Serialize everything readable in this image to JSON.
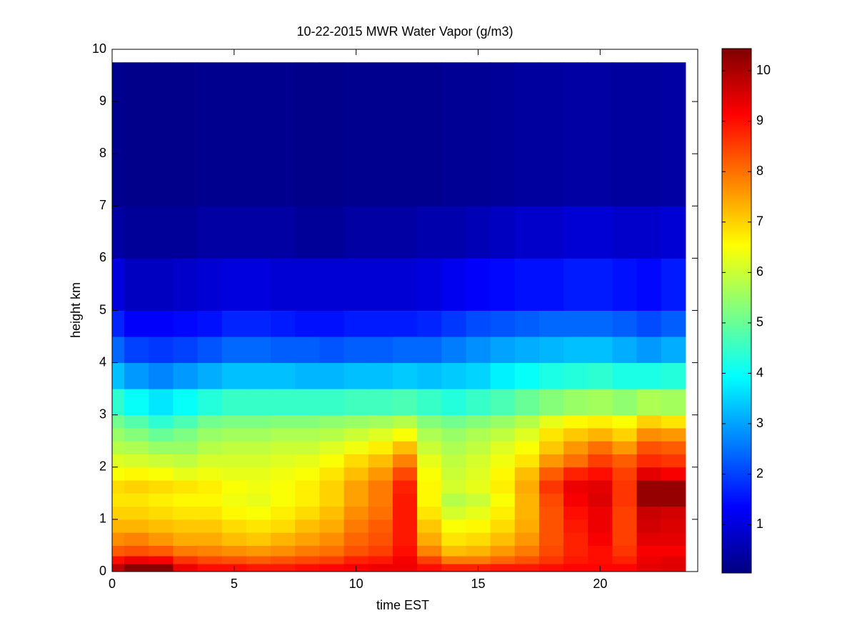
{
  "chart_data": {
    "type": "heatmap",
    "title": "10-22-2015 MWR Water Vapor (g/m3)",
    "xlabel": "time EST",
    "ylabel": "height km",
    "colormap": "jet",
    "xlim": [
      0,
      24
    ],
    "ylim": [
      0,
      10
    ],
    "xticks": [
      0,
      5,
      10,
      15,
      20
    ],
    "yticks": [
      0,
      1,
      2,
      3,
      4,
      5,
      6,
      7,
      8,
      9,
      10
    ],
    "clim": [
      0.04,
      10.44
    ],
    "cticks": [
      1,
      2,
      3,
      4,
      5,
      6,
      7,
      8,
      9,
      10
    ],
    "x_edges": [
      0,
      0.5,
      1.5,
      2.5,
      3.5,
      4.5,
      5.5,
      6.5,
      7.5,
      8.5,
      9.5,
      10.5,
      11.5,
      12.5,
      13.5,
      14.5,
      15.5,
      16.5,
      17.5,
      18.5,
      19.5,
      20.5,
      21.5,
      22.5,
      23.5
    ],
    "y_edges": [
      0,
      0.15,
      0.3,
      0.5,
      0.75,
      1.0,
      1.25,
      1.5,
      1.75,
      2.0,
      2.25,
      2.5,
      2.75,
      3.0,
      3.5,
      4.0,
      4.5,
      5.0,
      6.0,
      7.0,
      9.75
    ],
    "values": [
      [
        9.8,
        10.3,
        10.3,
        9.3,
        9.0,
        9.0,
        8.9,
        8.9,
        9.0,
        9.1,
        9.2,
        9.3,
        9.3,
        9.0,
        8.8,
        8.8,
        8.9,
        8.9,
        9.0,
        9.1,
        9.1,
        9.1,
        9.4,
        9.5
      ],
      [
        9.0,
        9.3,
        9.2,
        8.6,
        8.4,
        8.3,
        8.2,
        8.3,
        8.4,
        8.5,
        8.8,
        8.9,
        9.2,
        8.5,
        7.9,
        7.9,
        8.1,
        8.3,
        8.6,
        8.9,
        9.0,
        8.8,
        9.3,
        9.4
      ],
      [
        8.2,
        8.3,
        8.2,
        7.9,
        7.8,
        7.7,
        7.6,
        7.7,
        7.9,
        8.0,
        8.3,
        8.5,
        9.0,
        7.8,
        7.2,
        7.3,
        7.6,
        7.9,
        8.4,
        8.8,
        9.0,
        8.6,
        9.2,
        9.2
      ],
      [
        7.7,
        7.8,
        7.6,
        7.4,
        7.4,
        7.2,
        7.1,
        7.3,
        7.5,
        7.7,
        8.1,
        8.3,
        8.9,
        7.4,
        6.8,
        6.9,
        7.2,
        7.6,
        8.3,
        8.8,
        9.2,
        8.5,
        9.4,
        9.4
      ],
      [
        7.3,
        7.3,
        7.2,
        7.1,
        7.1,
        6.9,
        6.8,
        6.9,
        7.2,
        7.4,
        7.9,
        8.2,
        8.9,
        7.1,
        6.5,
        6.6,
        6.9,
        7.4,
        8.3,
        8.9,
        9.3,
        8.5,
        9.6,
        9.5
      ],
      [
        7.0,
        7.0,
        6.9,
        6.8,
        6.8,
        6.6,
        6.5,
        6.7,
        6.9,
        7.2,
        7.7,
        8.0,
        8.9,
        6.8,
        6.1,
        6.3,
        6.7,
        7.3,
        8.3,
        9.0,
        9.3,
        8.5,
        9.7,
        9.6
      ],
      [
        6.8,
        6.8,
        6.7,
        6.6,
        6.6,
        6.4,
        6.3,
        6.5,
        6.7,
        7.0,
        7.5,
        7.9,
        8.9,
        6.6,
        5.8,
        6.0,
        6.5,
        7.3,
        8.4,
        9.2,
        9.5,
        8.6,
        10.2,
        10.2
      ],
      [
        6.9,
        7.0,
        6.9,
        6.8,
        6.7,
        6.5,
        6.4,
        6.5,
        6.7,
        7.0,
        7.5,
        7.9,
        8.8,
        6.6,
        6.1,
        6.3,
        6.7,
        7.4,
        8.6,
        9.3,
        9.4,
        8.6,
        10.2,
        10.2
      ],
      [
        6.5,
        6.6,
        6.5,
        6.3,
        6.4,
        6.3,
        6.3,
        6.4,
        6.5,
        6.8,
        7.2,
        7.6,
        8.4,
        6.5,
        6.0,
        6.2,
        6.6,
        7.2,
        8.2,
        8.8,
        9.0,
        8.5,
        9.4,
        9.2
      ],
      [
        6.2,
        6.1,
        6.0,
        5.9,
        6.1,
        6.1,
        6.1,
        6.2,
        6.3,
        6.5,
        6.9,
        7.2,
        7.8,
        6.3,
        5.9,
        6.1,
        6.4,
        6.8,
        7.6,
        8.0,
        8.5,
        8.2,
        8.7,
        8.6
      ],
      [
        5.8,
        5.7,
        5.5,
        5.5,
        5.8,
        5.9,
        5.9,
        6.0,
        6.0,
        6.2,
        6.4,
        6.7,
        7.2,
        6.0,
        5.7,
        5.9,
        6.2,
        6.5,
        7.1,
        7.6,
        8.0,
        7.6,
        8.3,
        8.2
      ],
      [
        5.5,
        5.3,
        5.0,
        5.2,
        5.5,
        5.6,
        5.6,
        5.7,
        5.7,
        5.8,
        6.0,
        6.2,
        6.5,
        5.7,
        5.5,
        5.7,
        5.9,
        6.2,
        6.8,
        7.1,
        7.3,
        7.0,
        7.7,
        7.6
      ],
      [
        5.1,
        4.8,
        4.4,
        4.7,
        5.1,
        5.2,
        5.2,
        5.3,
        5.3,
        5.4,
        5.5,
        5.6,
        5.8,
        5.3,
        5.1,
        5.3,
        5.5,
        5.8,
        6.3,
        6.6,
        6.7,
        6.5,
        7.0,
        6.8
      ],
      [
        4.4,
        4.0,
        3.7,
        4.0,
        4.3,
        4.5,
        4.5,
        4.5,
        4.5,
        4.5,
        4.6,
        4.6,
        4.7,
        4.5,
        4.3,
        4.5,
        4.7,
        5.0,
        5.3,
        5.5,
        5.6,
        5.4,
        5.7,
        5.6
      ],
      [
        3.3,
        2.9,
        2.7,
        2.9,
        3.1,
        3.3,
        3.3,
        3.3,
        3.2,
        3.2,
        3.3,
        3.3,
        3.4,
        3.3,
        3.4,
        3.5,
        3.8,
        4.0,
        4.2,
        4.3,
        4.4,
        4.2,
        4.2,
        4.3
      ],
      [
        2.4,
        2.0,
        1.9,
        2.0,
        2.2,
        2.4,
        2.4,
        2.3,
        2.3,
        2.2,
        2.3,
        2.3,
        2.4,
        2.4,
        2.6,
        2.8,
        3.0,
        3.1,
        3.2,
        3.3,
        3.3,
        3.1,
        2.9,
        3.1
      ],
      [
        1.7,
        1.3,
        1.3,
        1.4,
        1.5,
        1.7,
        1.7,
        1.6,
        1.5,
        1.5,
        1.6,
        1.6,
        1.6,
        1.7,
        1.9,
        2.1,
        2.2,
        2.3,
        2.4,
        2.4,
        2.4,
        2.3,
        2.1,
        2.3
      ],
      [
        1.0,
        0.7,
        0.7,
        0.8,
        0.9,
        1.0,
        1.0,
        0.9,
        0.9,
        0.9,
        0.9,
        0.9,
        0.9,
        1.0,
        1.2,
        1.3,
        1.4,
        1.5,
        1.5,
        1.6,
        1.6,
        1.5,
        1.4,
        1.6
      ],
      [
        0.4,
        0.3,
        0.3,
        0.3,
        0.4,
        0.4,
        0.4,
        0.4,
        0.3,
        0.3,
        0.4,
        0.4,
        0.4,
        0.5,
        0.5,
        0.6,
        0.7,
        0.8,
        0.8,
        0.9,
        0.9,
        0.8,
        0.8,
        0.9
      ],
      [
        0.2,
        0.15,
        0.15,
        0.15,
        0.2,
        0.2,
        0.2,
        0.2,
        0.15,
        0.15,
        0.2,
        0.2,
        0.2,
        0.2,
        0.25,
        0.25,
        0.3,
        0.35,
        0.35,
        0.4,
        0.4,
        0.35,
        0.35,
        0.4
      ]
    ]
  }
}
